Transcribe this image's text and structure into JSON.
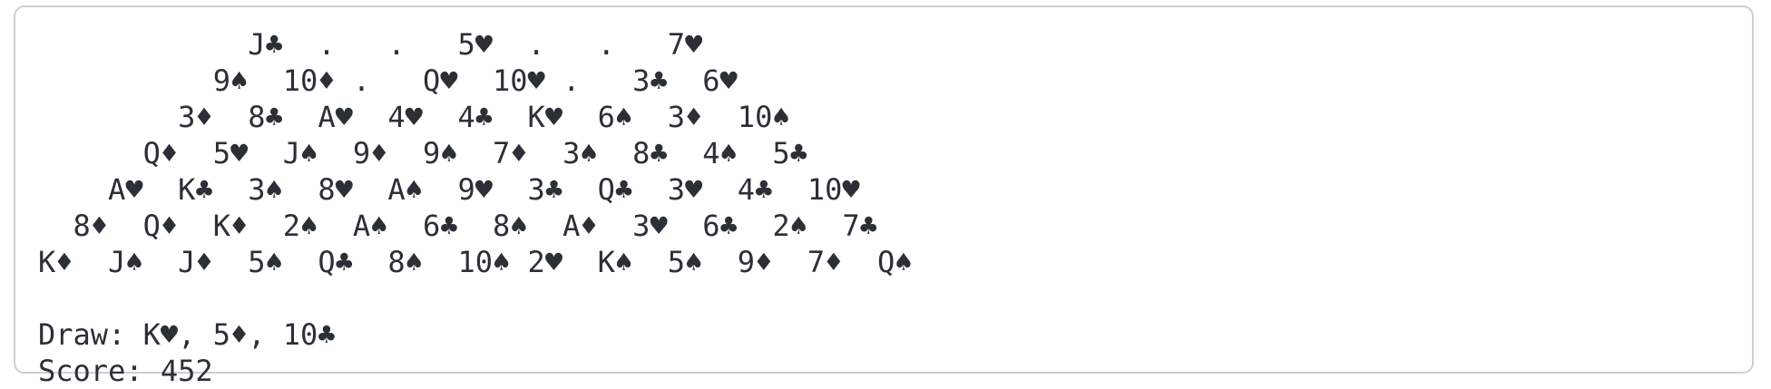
{
  "pyramid": {
    "rows": [
      [
        "J♣",
        ".",
        ".",
        "5♥",
        ".",
        ".",
        "7♥"
      ],
      [
        "9♠",
        "10♦",
        ".",
        "Q♥",
        "10♥",
        ".",
        "3♣",
        "6♥"
      ],
      [
        "3♦",
        "8♣",
        "A♥",
        "4♥",
        "4♣",
        "K♥",
        "6♠",
        "3♦",
        "10♠"
      ],
      [
        "Q♦",
        "5♥",
        "J♠",
        "9♦",
        "9♠",
        "7♦",
        "3♠",
        "8♣",
        "4♠",
        "5♣"
      ],
      [
        "A♥",
        "K♣",
        "3♠",
        "8♥",
        "A♠",
        "9♥",
        "3♣",
        "Q♣",
        "3♥",
        "4♣",
        "10♥"
      ],
      [
        "8♦",
        "Q♦",
        "K♦",
        "2♠",
        "A♠",
        "6♣",
        "8♠",
        "A♦",
        "3♥",
        "6♣",
        "2♠",
        "7♣"
      ],
      [
        "K♦",
        "J♠",
        "J♦",
        "5♠",
        "Q♣",
        "8♠",
        "10♠",
        "2♥",
        "K♠",
        "5♠",
        "9♦",
        "7♦",
        "Q♠"
      ]
    ]
  },
  "draw_line": "Draw: K♥, 5♦, 10♣",
  "score_line": "Score: 452"
}
